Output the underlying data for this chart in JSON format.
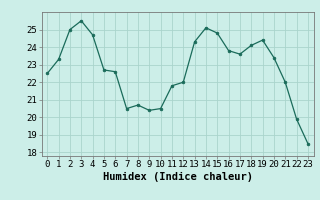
{
  "x": [
    0,
    1,
    2,
    3,
    4,
    5,
    6,
    7,
    8,
    9,
    10,
    11,
    12,
    13,
    14,
    15,
    16,
    17,
    18,
    19,
    20,
    21,
    22,
    23
  ],
  "y": [
    22.5,
    23.3,
    25.0,
    25.5,
    24.7,
    22.7,
    22.6,
    20.5,
    20.7,
    20.4,
    20.5,
    21.8,
    22.0,
    24.3,
    25.1,
    24.8,
    23.8,
    23.6,
    24.1,
    24.4,
    23.4,
    22.0,
    19.9,
    18.5
  ],
  "line_color": "#1a6b5a",
  "marker_color": "#1a6b5a",
  "bg_color": "#cceee8",
  "grid_color": "#aad4cc",
  "xlabel": "Humidex (Indice chaleur)",
  "ylim": [
    17.8,
    26.0
  ],
  "yticks": [
    18,
    19,
    20,
    21,
    22,
    23,
    24,
    25
  ],
  "xticks": [
    0,
    1,
    2,
    3,
    4,
    5,
    6,
    7,
    8,
    9,
    10,
    11,
    12,
    13,
    14,
    15,
    16,
    17,
    18,
    19,
    20,
    21,
    22,
    23
  ],
  "xlabel_fontsize": 7.5,
  "tick_fontsize": 6.5
}
